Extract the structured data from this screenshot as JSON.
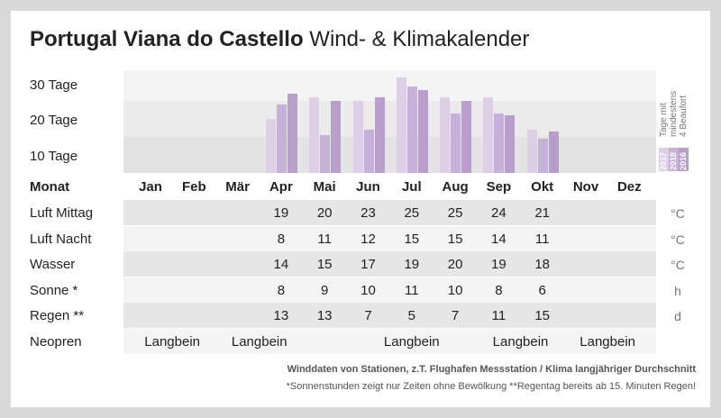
{
  "title": {
    "bold": "Portugal Viana do Castello",
    "rest": "Wind- & Klimakalender"
  },
  "chart_data": {
    "type": "bar",
    "title": "Tage mit mindestens 4 Beaufort",
    "categories": [
      "Jan",
      "Feb",
      "Mär",
      "Apr",
      "Mai",
      "Jun",
      "Jul",
      "Aug",
      "Sep",
      "Okt",
      "Nov",
      "Dez"
    ],
    "ytick_labels": [
      "30 Tage",
      "20 Tage",
      "10 Tage"
    ],
    "ylim": [
      0,
      28
    ],
    "series": [
      {
        "name": "2017",
        "color": "#dccfe6",
        "values": [
          null,
          null,
          null,
          15,
          21,
          20,
          26.5,
          21,
          21,
          12,
          null,
          null
        ]
      },
      {
        "name": "2018",
        "color": "#c6b2d8",
        "values": [
          null,
          null,
          null,
          19,
          10.5,
          12,
          24,
          16.5,
          16.5,
          9.5,
          null,
          null
        ]
      },
      {
        "name": "2016",
        "color": "#b89ecb",
        "values": [
          null,
          null,
          null,
          22,
          20,
          21,
          23,
          20,
          16,
          11.5,
          null,
          null
        ]
      }
    ],
    "legend": {
      "line1": "Tage mit",
      "line2": "mindestens",
      "line3": "4 Beaufort",
      "placement": "right"
    }
  },
  "table": {
    "header": "Monat",
    "rows": [
      {
        "label": "Luft Mittag",
        "unit": "°C",
        "values": [
          "",
          "",
          "",
          "19",
          "20",
          "23",
          "25",
          "25",
          "24",
          "21",
          "",
          ""
        ]
      },
      {
        "label": "Luft Nacht",
        "unit": "°C",
        "values": [
          "",
          "",
          "",
          "8",
          "11",
          "12",
          "15",
          "15",
          "14",
          "11",
          "",
          ""
        ]
      },
      {
        "label": "Wasser",
        "unit": "°C",
        "values": [
          "",
          "",
          "",
          "14",
          "15",
          "17",
          "19",
          "20",
          "19",
          "18",
          "",
          ""
        ]
      },
      {
        "label": "Sonne *",
        "unit": "h",
        "values": [
          "",
          "",
          "",
          "8",
          "9",
          "10",
          "11",
          "10",
          "8",
          "6",
          "",
          ""
        ]
      },
      {
        "label": "Regen **",
        "unit": "d",
        "values": [
          "",
          "",
          "",
          "13",
          "13",
          "7",
          "5",
          "7",
          "11",
          "15",
          "",
          ""
        ]
      }
    ],
    "neopren": {
      "label": "Neopren",
      "entries": [
        {
          "text": "Langbein",
          "col": 0.5
        },
        {
          "text": "Langbein",
          "col": 2.5
        },
        {
          "text": "Langbein",
          "col": 6
        },
        {
          "text": "Langbein",
          "col": 8.5
        },
        {
          "text": "Langbein",
          "col": 10.5
        }
      ]
    }
  },
  "footer": {
    "line1": "Winddaten von Stationen, z.T. Flughafen Messstation / Klima langjähriger Durchschnitt",
    "line2": "*Sonnenstunden zeigt nur Zeiten ohne Bewölkung  **Regentag bereits ab 15. Minuten Regen!"
  }
}
